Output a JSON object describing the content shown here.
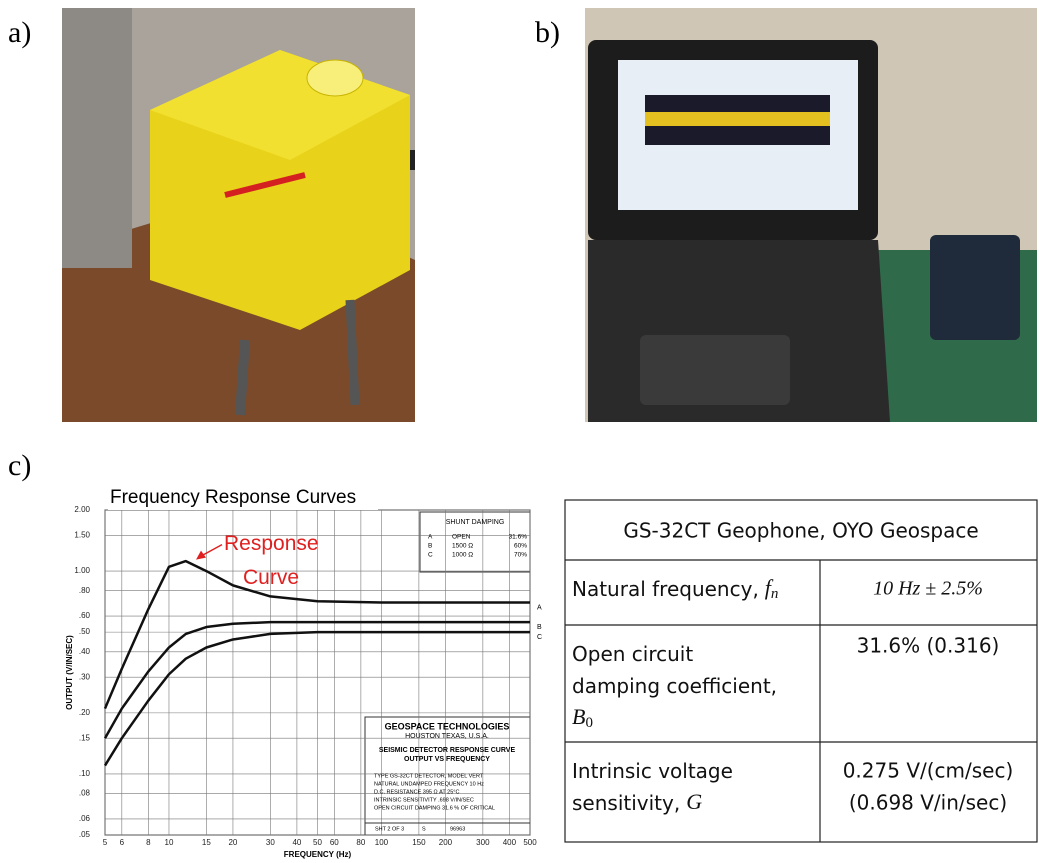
{
  "panel_labels": [
    "a)",
    "b)",
    "c)"
  ],
  "chart_data": {
    "type": "line",
    "title": "Frequency Response Curves",
    "x_label": "FREQUENCY (Hz)",
    "y_label": "OUTPUT (V/IN/SEC)",
    "log_x": true,
    "log_y": true,
    "grid": true,
    "xlim": [
      5,
      500
    ],
    "ylim": [
      0.05,
      2.0
    ],
    "xticks": [
      5,
      6,
      8,
      10,
      15,
      20,
      30,
      40,
      50,
      60,
      80,
      100,
      150,
      200,
      300,
      400,
      500
    ],
    "yticks": [
      {
        "value": 0.05,
        "label": ".05"
      },
      {
        "value": 0.06,
        "label": ".06"
      },
      {
        "value": 0.08,
        "label": ".08"
      },
      {
        "value": 0.1,
        "label": ".10"
      },
      {
        "value": 0.15,
        "label": ".15"
      },
      {
        "value": 0.2,
        "label": ".20"
      },
      {
        "value": 0.3,
        "label": ".30"
      },
      {
        "value": 0.4,
        "label": ".40"
      },
      {
        "value": 0.5,
        "label": ".50"
      },
      {
        "value": 0.6,
        "label": ".60"
      },
      {
        "value": 0.8,
        "label": ".80"
      },
      {
        "value": 1.0,
        "label": "1.00"
      },
      {
        "value": 1.5,
        "label": "1.50"
      },
      {
        "value": 2.0,
        "label": "2.00"
      }
    ],
    "x": [
      5,
      6,
      8,
      10,
      12,
      15,
      20,
      30,
      50,
      100,
      200,
      500
    ],
    "series": [
      {
        "name": "A",
        "color": "#111111",
        "values": [
          0.21,
          0.33,
          0.65,
          1.05,
          1.12,
          1.0,
          0.85,
          0.75,
          0.71,
          0.7,
          0.7,
          0.7
        ]
      },
      {
        "name": "B",
        "color": "#111111",
        "values": [
          0.15,
          0.21,
          0.32,
          0.42,
          0.49,
          0.53,
          0.55,
          0.56,
          0.56,
          0.56,
          0.56,
          0.56
        ]
      },
      {
        "name": "C",
        "color": "#111111",
        "values": [
          0.11,
          0.15,
          0.23,
          0.31,
          0.37,
          0.42,
          0.46,
          0.49,
          0.5,
          0.5,
          0.5,
          0.5
        ]
      }
    ],
    "annotation": [
      "Response",
      "Curve"
    ],
    "shunt_damping": {
      "title": "SHUNT DAMPING",
      "rows": [
        [
          "A",
          "OPEN",
          "31.6%"
        ],
        [
          "B",
          "1500 Ω",
          "60%"
        ],
        [
          "C",
          "1000 Ω",
          "70%"
        ]
      ]
    },
    "info_box": [
      "GEOSPACE TECHNOLOGIES",
      "HOUSTON TEXAS, U.S.A.",
      "SEISMIC DETECTOR RESPONSE CURVE",
      "OUTPUT VS FREQUENCY",
      "TYPE GS-32CT DETECTOR, MODEL VERT",
      "NATURAL UNDAMPED FREQUENCY 10 Hz",
      "D.C. RESISTANCE 395 Ω AT 25°C",
      "INTRINSIC SENSITIVITY .698 V/IN/SEC",
      "OPEN CIRCUIT DAMPING 31.6 % OF CRITICAL"
    ],
    "info_footer": [
      "SHT 2 OF 3",
      "S",
      "96963"
    ]
  },
  "table": {
    "header": "GS-32CT Geophone, OYO Geospace",
    "rows": [
      {
        "label": [
          "Natural frequency,"
        ],
        "symbol": "f",
        "sub": "n",
        "value": [
          "10 Hz ± 2.5%"
        ]
      },
      {
        "label": [
          "Open circuit",
          "damping coefficient,"
        ],
        "symbol": "B",
        "sub": "0",
        "value": [
          "31.6% (0.316)"
        ]
      },
      {
        "label": [
          "Intrinsic voltage",
          "sensitivity,"
        ],
        "symbol": "G",
        "value": [
          "0.275 V/(cm/sec)",
          "(0.698 V/in/sec)"
        ]
      }
    ]
  }
}
